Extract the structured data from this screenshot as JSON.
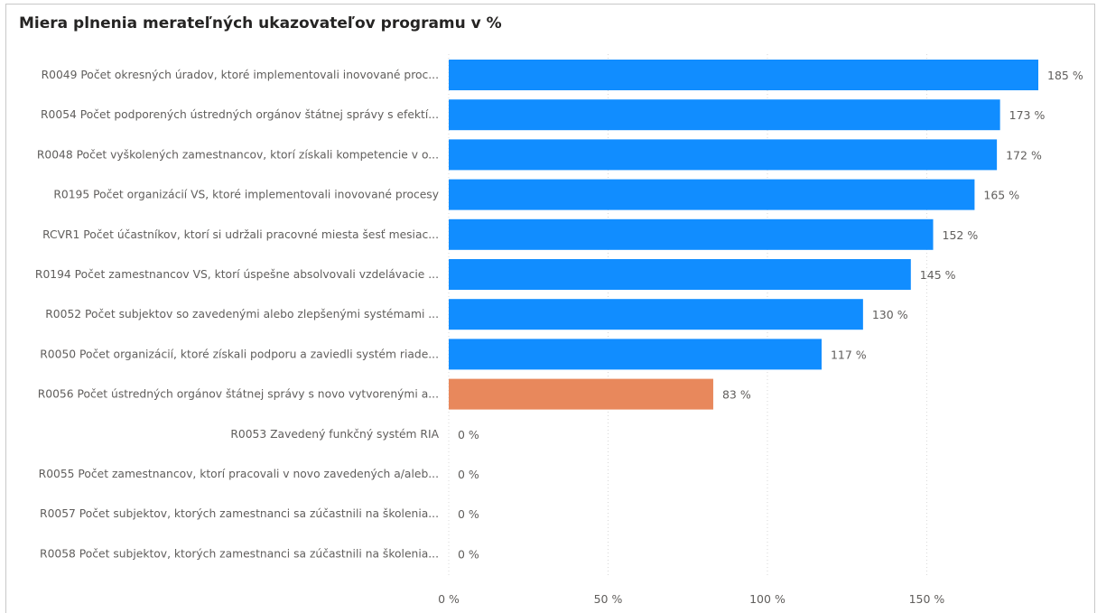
{
  "chart_data": {
    "type": "bar",
    "orientation": "horizontal",
    "title": "Miera plnenia merateľných ukazovateľov programu v %",
    "categories": [
      "R0049 Počet okresných úradov, ktoré implementovali inovované proc...",
      "R0054 Počet podporených ústredných orgánov štátnej správy s efektí...",
      "R0048 Počet vyškolených zamestnancov, ktorí získali kompetencie v o...",
      "R0195 Počet organizácií VS, ktoré implementovali inovované procesy",
      "RCVR1 Počet účastníkov, ktorí si udržali pracovné miesta šesť mesiac...",
      "R0194 Počet zamestnancov VS, ktorí úspešne absolvovali vzdelávacie ...",
      "R0052 Počet subjektov so zavedenými alebo zlepšenými systémami ...",
      "R0050 Počet organizácií, ktoré získali podporu a zaviedli systém riade...",
      "R0056 Počet ústredných orgánov štátnej správy s novo vytvorenými a...",
      "R0053 Zavedený funkčný systém RIA",
      "R0055 Počet zamestnancov, ktorí pracovali v novo zavedených a/aleb...",
      "R0057 Počet subjektov, ktorých zamestnanci sa zúčastnili na školenia...",
      "R0058 Počet subjektov, ktorých zamestnanci sa zúčastnili na školenia..."
    ],
    "values": [
      185,
      173,
      172,
      165,
      152,
      145,
      130,
      117,
      83,
      0,
      0,
      0,
      0
    ],
    "value_labels": [
      "185 %",
      "173 %",
      "172 %",
      "165 %",
      "152 %",
      "145 %",
      "130 %",
      "117 %",
      "83 %",
      "0 %",
      "0 %",
      "0 %",
      "0 %"
    ],
    "bar_colors": [
      "#118DFF",
      "#118DFF",
      "#118DFF",
      "#118DFF",
      "#118DFF",
      "#118DFF",
      "#118DFF",
      "#118DFF",
      "#E8885C",
      "#118DFF",
      "#118DFF",
      "#118DFF",
      "#118DFF"
    ],
    "x_ticks": [
      0,
      50,
      100,
      150
    ],
    "x_tick_labels": [
      "0 %",
      "50 %",
      "100 %",
      "150 %"
    ],
    "xlim": [
      0,
      185
    ],
    "xlabel": "",
    "ylabel": "",
    "grid": true,
    "grid_style": "dotted vertical",
    "legend": "none"
  }
}
